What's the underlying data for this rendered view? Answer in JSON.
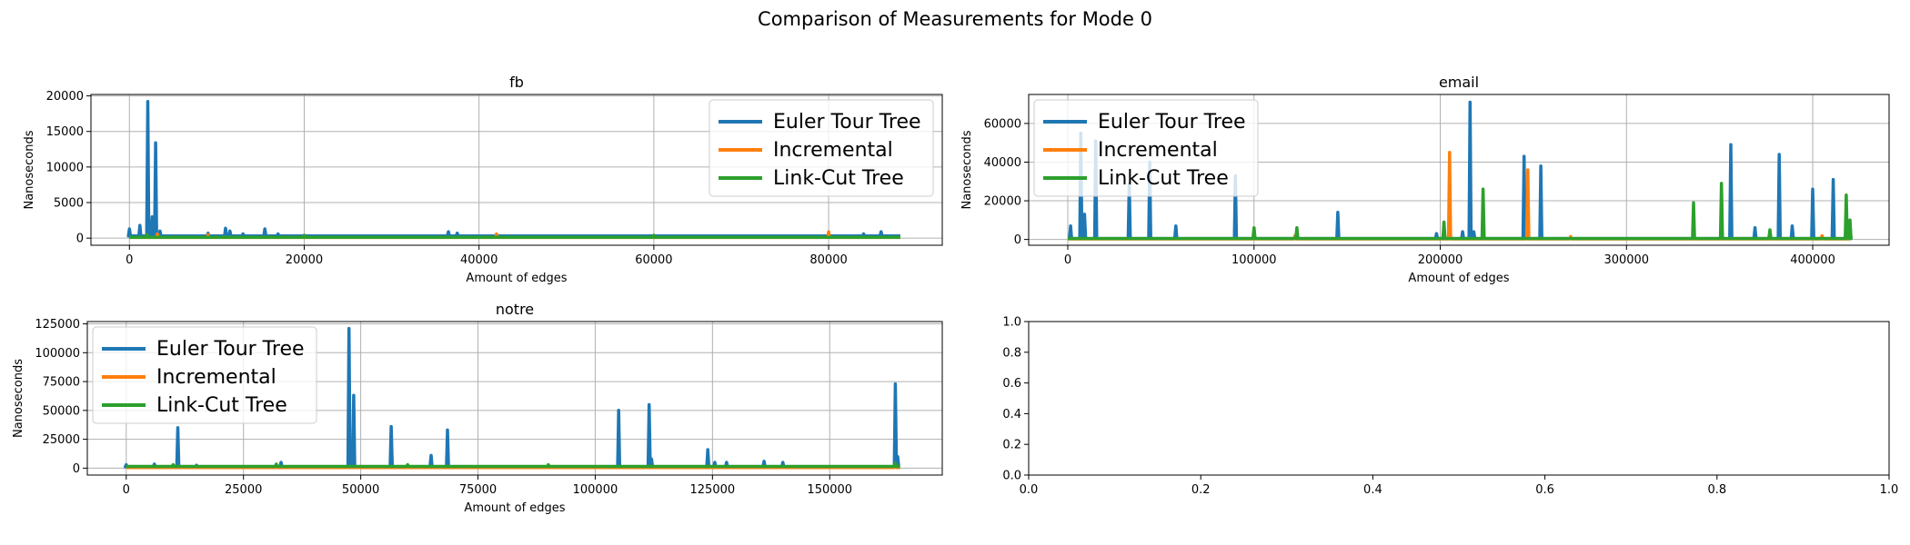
{
  "figure": {
    "title": "Comparison of Measurements for Mode 0"
  },
  "colors": {
    "euler": "#1f77b4",
    "incremental": "#ff7f0e",
    "linkcut": "#2ca02c",
    "grid": "#b0b0b0"
  },
  "chart_data": [
    {
      "type": "line",
      "title": "fb",
      "xlabel": "Amount of edges",
      "ylabel": "Nanoseconds",
      "xlim": [
        -4400,
        93000
      ],
      "ylim": [
        -1000,
        20200
      ],
      "xticks": [
        0,
        20000,
        40000,
        60000,
        80000
      ],
      "xtick_labels": [
        "0",
        "20000",
        "40000",
        "60000",
        "80000"
      ],
      "yticks": [
        0,
        5000,
        10000,
        15000,
        20000
      ],
      "ytick_labels": [
        "0",
        "5000",
        "10000",
        "15000",
        "20000"
      ],
      "grid": true,
      "legend_placement": "upper right",
      "x_end": 88200,
      "series": [
        {
          "name": "Euler Tour Tree",
          "color_key": "euler",
          "baseline": 300,
          "spikes": [
            [
              0,
              1300
            ],
            [
              1200,
              1800
            ],
            [
              2100,
              19200
            ],
            [
              2600,
              3000
            ],
            [
              3000,
              13400
            ],
            [
              3500,
              1000
            ],
            [
              9000,
              700
            ],
            [
              11000,
              1400
            ],
            [
              11500,
              1000
            ],
            [
              13000,
              600
            ],
            [
              15500,
              1300
            ],
            [
              17000,
              600
            ],
            [
              36500,
              900
            ],
            [
              37500,
              700
            ],
            [
              42000,
              500
            ],
            [
              84000,
              600
            ],
            [
              86000,
              900
            ]
          ]
        },
        {
          "name": "Incremental",
          "color_key": "incremental",
          "baseline": 100,
          "spikes": [
            [
              3200,
              600
            ],
            [
              9000,
              500
            ],
            [
              42000,
              600
            ],
            [
              80000,
              900
            ]
          ]
        },
        {
          "name": "Link-Cut Tree",
          "color_key": "linkcut",
          "baseline": 120,
          "spikes": [
            [
              2000,
              500
            ],
            [
              20000,
              400
            ],
            [
              60000,
              400
            ]
          ]
        }
      ]
    },
    {
      "type": "line",
      "title": "email",
      "xlabel": "Amount of edges",
      "ylabel": "Nanoseconds",
      "xlim": [
        -21000,
        441000
      ],
      "ylim": [
        -3000,
        75000
      ],
      "xticks": [
        0,
        100000,
        200000,
        300000,
        400000
      ],
      "xtick_labels": [
        "0",
        "100000",
        "200000",
        "300000",
        "400000"
      ],
      "yticks": [
        0,
        20000,
        40000,
        60000
      ],
      "ytick_labels": [
        "0",
        "20000",
        "40000",
        "60000"
      ],
      "grid": true,
      "legend_placement": "upper left",
      "x_end": 420000,
      "series": [
        {
          "name": "Euler Tour Tree",
          "color_key": "euler",
          "baseline": 500,
          "spikes": [
            [
              1500,
              7000
            ],
            [
              7000,
              55000
            ],
            [
              9000,
              13000
            ],
            [
              15000,
              51000
            ],
            [
              33000,
              29000
            ],
            [
              44000,
              40000
            ],
            [
              58000,
              7000
            ],
            [
              90000,
              33000
            ],
            [
              145000,
              14000
            ],
            [
              198000,
              3000
            ],
            [
              212000,
              4000
            ],
            [
              216000,
              71000
            ],
            [
              218000,
              4000
            ],
            [
              245000,
              43000
            ],
            [
              254000,
              38000
            ],
            [
              356000,
              49000
            ],
            [
              369000,
              6000
            ],
            [
              382000,
              44000
            ],
            [
              389000,
              7000
            ],
            [
              400000,
              26000
            ],
            [
              411000,
              31000
            ],
            [
              420000,
              8000
            ]
          ]
        },
        {
          "name": "Incremental",
          "color_key": "incremental",
          "baseline": 300,
          "spikes": [
            [
              122000,
              2000
            ],
            [
              205000,
              45000
            ],
            [
              247000,
              36000
            ],
            [
              270000,
              1500
            ],
            [
              405000,
              2000
            ]
          ]
        },
        {
          "name": "Link-Cut Tree",
          "color_key": "linkcut",
          "baseline": 500,
          "spikes": [
            [
              100000,
              6000
            ],
            [
              123000,
              6000
            ],
            [
              202000,
              9000
            ],
            [
              223000,
              26000
            ],
            [
              336000,
              19000
            ],
            [
              351000,
              29000
            ],
            [
              377000,
              5000
            ],
            [
              418000,
              23000
            ],
            [
              420000,
              10000
            ]
          ]
        }
      ]
    },
    {
      "type": "line",
      "title": "notre",
      "xlabel": "Amount of edges",
      "ylabel": "Nanoseconds",
      "xlim": [
        -8300,
        174000
      ],
      "ylim": [
        -6000,
        127000
      ],
      "xticks": [
        0,
        25000,
        50000,
        75000,
        100000,
        125000,
        150000
      ],
      "xtick_labels": [
        "0",
        "25000",
        "50000",
        "75000",
        "100000",
        "125000",
        "150000"
      ],
      "yticks": [
        0,
        25000,
        50000,
        75000,
        100000,
        125000
      ],
      "ytick_labels": [
        "0",
        "25000",
        "50000",
        "75000",
        "100000",
        "125000"
      ],
      "grid": true,
      "legend_placement": "upper left",
      "x_end": 165000,
      "series": [
        {
          "name": "Euler Tour Tree",
          "color_key": "euler",
          "baseline": 1200,
          "spikes": [
            [
              0,
              3000
            ],
            [
              6000,
              3500
            ],
            [
              11000,
              35000
            ],
            [
              15000,
              2500
            ],
            [
              33000,
              5000
            ],
            [
              47500,
              121000
            ],
            [
              48500,
              63000
            ],
            [
              56500,
              36000
            ],
            [
              65000,
              11000
            ],
            [
              68500,
              33000
            ],
            [
              105000,
              50000
            ],
            [
              111500,
              55000
            ],
            [
              112000,
              8000
            ],
            [
              124000,
              16000
            ],
            [
              125500,
              5000
            ],
            [
              128000,
              5000
            ],
            [
              136000,
              6000
            ],
            [
              140000,
              5000
            ],
            [
              164000,
              73000
            ],
            [
              164500,
              10000
            ]
          ]
        },
        {
          "name": "Incremental",
          "color_key": "incremental",
          "baseline": 500,
          "spikes": [
            [
              164000,
              2000
            ]
          ]
        },
        {
          "name": "Link-Cut Tree",
          "color_key": "linkcut",
          "baseline": 1500,
          "spikes": [
            [
              10000,
              3000
            ],
            [
              32000,
              3500
            ],
            [
              60000,
              3000
            ],
            [
              90000,
              3000
            ],
            [
              164000,
              4000
            ]
          ]
        }
      ]
    },
    {
      "type": "line",
      "title": "",
      "xlabel": "",
      "ylabel": "",
      "xlim": [
        0,
        1
      ],
      "ylim": [
        0,
        1
      ],
      "xticks": [
        0,
        0.2,
        0.4,
        0.6,
        0.8,
        1
      ],
      "xtick_labels": [
        "0.0",
        "0.2",
        "0.4",
        "0.6",
        "0.8",
        "1.0"
      ],
      "yticks": [
        0,
        0.2,
        0.4,
        0.6,
        0.8,
        1
      ],
      "ytick_labels": [
        "0.0",
        "0.2",
        "0.4",
        "0.6",
        "0.8",
        "1.0"
      ],
      "grid": false,
      "legend_placement": "",
      "series": []
    }
  ]
}
